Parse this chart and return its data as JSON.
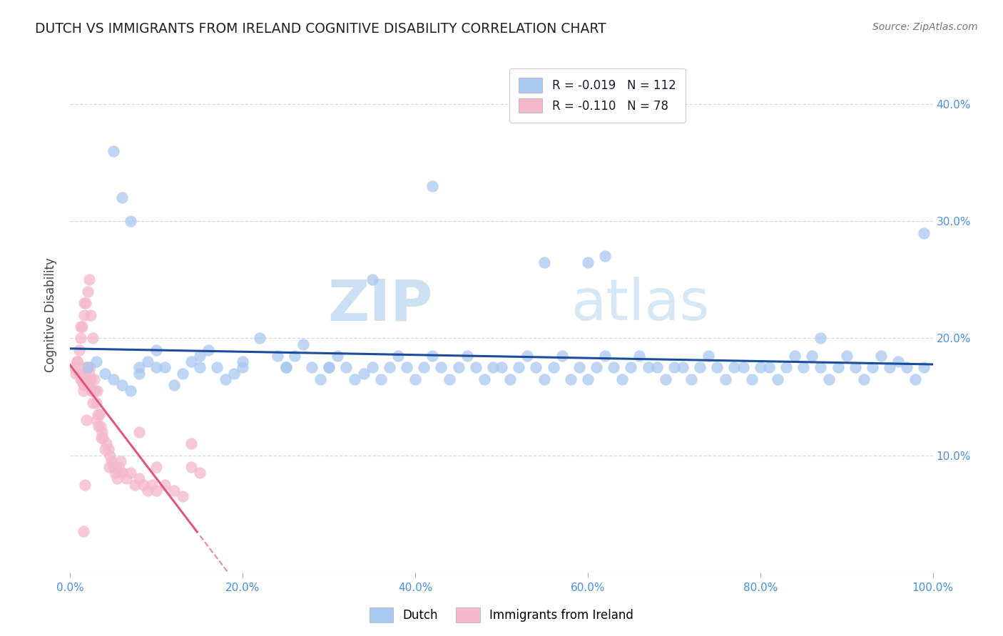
{
  "title": "DUTCH VS IMMIGRANTS FROM IRELAND COGNITIVE DISABILITY CORRELATION CHART",
  "source": "Source: ZipAtlas.com",
  "ylabel": "Cognitive Disability",
  "axis_color": "#4a90d9",
  "background_color": "#ffffff",
  "watermark_zip": "ZIP",
  "watermark_atlas": "atlas",
  "dutch_color_fill": "#a8c8f0",
  "dutch_color_edge": "#7aaee0",
  "dutch_line_color": "#1a4d9e",
  "ireland_color_fill": "#f5b8cc",
  "ireland_color_edge": "#e890a8",
  "ireland_line_color": "#e05878",
  "dutch_R": -0.019,
  "dutch_N": 112,
  "ireland_R": -0.11,
  "ireland_N": 78,
  "xlim": [
    0.0,
    1.0
  ],
  "ylim": [
    0.0,
    0.44
  ],
  "xticks": [
    0.0,
    0.2,
    0.4,
    0.6,
    0.8,
    1.0
  ],
  "yticks": [
    0.0,
    0.1,
    0.2,
    0.3,
    0.4
  ],
  "xtick_labels": [
    "0.0%",
    "20.0%",
    "40.0%",
    "60.0%",
    "80.0%",
    "100.0%"
  ],
  "ytick_right_labels": [
    "",
    "10.0%",
    "20.0%",
    "30.0%",
    "40.0%"
  ],
  "grid_color": "#d0d0d0",
  "grid_style": "--",
  "dutch_x": [
    0.02,
    0.03,
    0.04,
    0.05,
    0.06,
    0.07,
    0.08,
    0.09,
    0.1,
    0.11,
    0.12,
    0.13,
    0.14,
    0.15,
    0.16,
    0.17,
    0.18,
    0.19,
    0.2,
    0.22,
    0.24,
    0.25,
    0.26,
    0.27,
    0.28,
    0.29,
    0.3,
    0.31,
    0.32,
    0.33,
    0.34,
    0.35,
    0.36,
    0.37,
    0.38,
    0.39,
    0.4,
    0.41,
    0.42,
    0.43,
    0.44,
    0.45,
    0.46,
    0.47,
    0.48,
    0.49,
    0.5,
    0.51,
    0.52,
    0.53,
    0.54,
    0.55,
    0.56,
    0.57,
    0.58,
    0.59,
    0.6,
    0.61,
    0.62,
    0.63,
    0.64,
    0.65,
    0.66,
    0.67,
    0.68,
    0.69,
    0.7,
    0.71,
    0.72,
    0.73,
    0.74,
    0.75,
    0.76,
    0.77,
    0.78,
    0.79,
    0.8,
    0.81,
    0.82,
    0.83,
    0.84,
    0.85,
    0.86,
    0.87,
    0.88,
    0.89,
    0.9,
    0.91,
    0.92,
    0.93,
    0.94,
    0.95,
    0.96,
    0.97,
    0.98,
    0.99,
    0.05,
    0.06,
    0.07,
    0.08,
    0.55,
    0.62,
    0.42,
    0.99,
    0.6,
    0.87,
    0.35,
    0.3,
    0.25,
    0.2,
    0.15,
    0.1
  ],
  "dutch_y": [
    0.175,
    0.18,
    0.17,
    0.165,
    0.16,
    0.155,
    0.17,
    0.18,
    0.19,
    0.175,
    0.16,
    0.17,
    0.18,
    0.185,
    0.19,
    0.175,
    0.165,
    0.17,
    0.18,
    0.2,
    0.185,
    0.175,
    0.185,
    0.195,
    0.175,
    0.165,
    0.175,
    0.185,
    0.175,
    0.165,
    0.17,
    0.175,
    0.165,
    0.175,
    0.185,
    0.175,
    0.165,
    0.175,
    0.185,
    0.175,
    0.165,
    0.175,
    0.185,
    0.175,
    0.165,
    0.175,
    0.175,
    0.165,
    0.175,
    0.185,
    0.175,
    0.165,
    0.175,
    0.185,
    0.165,
    0.175,
    0.165,
    0.175,
    0.185,
    0.175,
    0.165,
    0.175,
    0.185,
    0.175,
    0.175,
    0.165,
    0.175,
    0.175,
    0.165,
    0.175,
    0.185,
    0.175,
    0.165,
    0.175,
    0.175,
    0.165,
    0.175,
    0.175,
    0.165,
    0.175,
    0.185,
    0.175,
    0.185,
    0.175,
    0.165,
    0.175,
    0.185,
    0.175,
    0.165,
    0.175,
    0.185,
    0.175,
    0.18,
    0.175,
    0.165,
    0.175,
    0.36,
    0.32,
    0.3,
    0.175,
    0.265,
    0.27,
    0.33,
    0.29,
    0.265,
    0.2,
    0.25,
    0.175,
    0.175,
    0.175,
    0.175,
    0.175
  ],
  "ireland_x": [
    0.005,
    0.008,
    0.01,
    0.012,
    0.013,
    0.015,
    0.015,
    0.016,
    0.017,
    0.018,
    0.019,
    0.02,
    0.021,
    0.022,
    0.023,
    0.024,
    0.025,
    0.026,
    0.027,
    0.028,
    0.029,
    0.03,
    0.031,
    0.032,
    0.033,
    0.034,
    0.035,
    0.036,
    0.037,
    0.038,
    0.04,
    0.042,
    0.044,
    0.046,
    0.048,
    0.05,
    0.052,
    0.054,
    0.056,
    0.058,
    0.06,
    0.065,
    0.07,
    0.075,
    0.08,
    0.085,
    0.09,
    0.095,
    0.1,
    0.11,
    0.12,
    0.13,
    0.14,
    0.15,
    0.14,
    0.02,
    0.018,
    0.016,
    0.014,
    0.012,
    0.01,
    0.008,
    0.006,
    0.022,
    0.024,
    0.026,
    0.015,
    0.017,
    0.019,
    0.03,
    0.045,
    0.06,
    0.08,
    0.1,
    0.025,
    0.015,
    0.012,
    0.01
  ],
  "ireland_y": [
    0.175,
    0.18,
    0.17,
    0.21,
    0.165,
    0.16,
    0.155,
    0.23,
    0.17,
    0.175,
    0.165,
    0.175,
    0.16,
    0.17,
    0.175,
    0.165,
    0.155,
    0.145,
    0.155,
    0.165,
    0.155,
    0.145,
    0.155,
    0.135,
    0.125,
    0.135,
    0.125,
    0.115,
    0.12,
    0.115,
    0.105,
    0.11,
    0.105,
    0.1,
    0.095,
    0.09,
    0.085,
    0.08,
    0.09,
    0.095,
    0.085,
    0.08,
    0.085,
    0.075,
    0.08,
    0.075,
    0.07,
    0.075,
    0.07,
    0.075,
    0.07,
    0.065,
    0.09,
    0.085,
    0.11,
    0.24,
    0.23,
    0.22,
    0.21,
    0.2,
    0.19,
    0.18,
    0.17,
    0.25,
    0.22,
    0.2,
    0.035,
    0.075,
    0.13,
    0.13,
    0.09,
    0.085,
    0.12,
    0.09,
    0.155,
    0.16,
    0.165,
    0.17
  ]
}
